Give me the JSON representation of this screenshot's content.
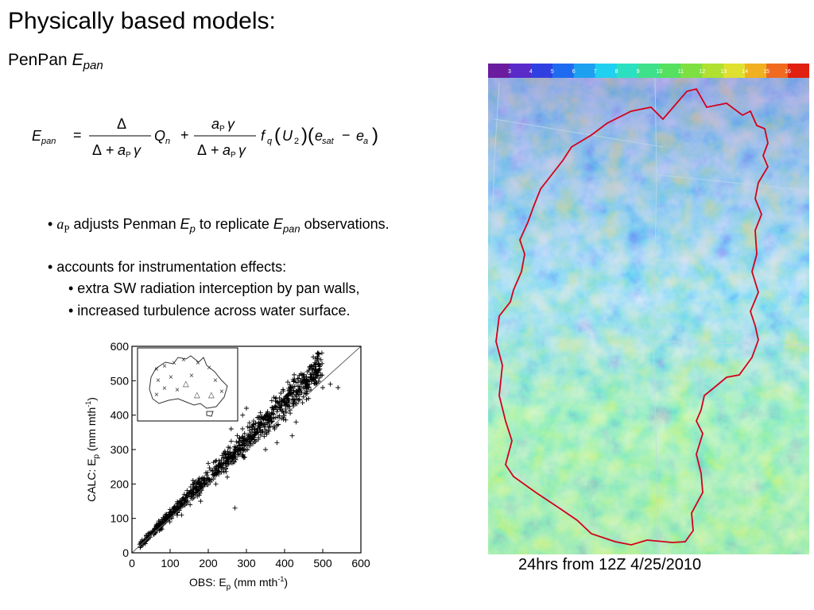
{
  "slide": {
    "title": "Physically based models:",
    "subtitle_prefix": "PenPan ",
    "subtitle_E": "E",
    "subtitle_sub": "pan"
  },
  "formula": {
    "lhs_E": "E",
    "lhs_sub": "pan",
    "eq": "=",
    "delta": "Δ",
    "den1": "Δ + a",
    "a": "a",
    "P": "P",
    "gamma": "γ",
    "Q": "Q",
    "n": "n",
    "plus": "+",
    "f": "f",
    "q": "q",
    "U": "U",
    "two": "2",
    "e": "e",
    "sat": "sat",
    "minus": "−",
    "a_sub": "a"
  },
  "bullets": {
    "b1_a": "a",
    "b1_P": "P",
    "b1_t1": " adjusts Penman ",
    "b1_E": "E",
    "b1_p": "p",
    "b1_t2": " to replicate ",
    "b1_E2": "E",
    "b1_pan": "pan",
    "b1_t3": " observations.",
    "b2": "• accounts for instrumentation effects:",
    "b3": "• extra SW radiation interception by pan walls,",
    "b4": "• increased turbulence across water surface.",
    "dot": "•"
  },
  "chart_data": {
    "type": "scatter",
    "xlabel_prefix": "OBS:  E",
    "xlabel_sub": "p",
    "xlabel_suffix": " (mm mth",
    "xlabel_sup": "-1",
    "xlabel_close": ")",
    "ylabel_prefix": "CALC: E",
    "ylabel_sub": "p",
    "ylabel_suffix": " (mm mth",
    "ylabel_sup": "-1",
    "ylabel_close": ")",
    "xlim": [
      0,
      600
    ],
    "ylim": [
      0,
      600
    ],
    "xticks": [
      0,
      100,
      200,
      300,
      400,
      500,
      600
    ],
    "yticks": [
      0,
      100,
      200,
      300,
      400,
      500,
      600
    ],
    "reference_line": "1:1",
    "marker": "+",
    "approx_points": [
      [
        20,
        25
      ],
      [
        40,
        45
      ],
      [
        60,
        62
      ],
      [
        80,
        90
      ],
      [
        100,
        108
      ],
      [
        120,
        125
      ],
      [
        140,
        150
      ],
      [
        160,
        175
      ],
      [
        180,
        200
      ],
      [
        200,
        215
      ],
      [
        220,
        240
      ],
      [
        240,
        260
      ],
      [
        260,
        285
      ],
      [
        280,
        300
      ],
      [
        300,
        330
      ],
      [
        320,
        350
      ],
      [
        340,
        370
      ],
      [
        360,
        385
      ],
      [
        380,
        410
      ],
      [
        400,
        430
      ],
      [
        420,
        455
      ],
      [
        440,
        460
      ],
      [
        460,
        480
      ],
      [
        500,
        480
      ],
      [
        520,
        490
      ],
      [
        540,
        480
      ],
      [
        290,
        400
      ],
      [
        300,
        420
      ],
      [
        260,
        360
      ],
      [
        420,
        340
      ],
      [
        220,
        200
      ],
      [
        250,
        220
      ],
      [
        350,
        300
      ],
      [
        180,
        150
      ],
      [
        130,
        110
      ],
      [
        430,
        380
      ],
      [
        270,
        130
      ],
      [
        380,
        320
      ],
      [
        200,
        260
      ],
      [
        160,
        210
      ]
    ],
    "inset_stations_x": 14,
    "inset_stations_triangle": 3
  },
  "map": {
    "colorbar_ticks": [
      "3",
      "4",
      "5",
      "6",
      "7",
      "8",
      "9",
      "10",
      "11",
      "12",
      "13",
      "14",
      "15",
      "16"
    ],
    "colorbar_colors": [
      "#6b1b9e",
      "#5a2bc8",
      "#3040e0",
      "#1f6bf0",
      "#1ea0f0",
      "#1fd0f0",
      "#2ae0c0",
      "#3ee08a",
      "#55e060",
      "#7ee040",
      "#b0e030",
      "#e0e030",
      "#f0b020",
      "#f06a20",
      "#e02010"
    ],
    "border_color": "#d4001c",
    "caption": "24hrs from 12Z 4/25/2010"
  }
}
